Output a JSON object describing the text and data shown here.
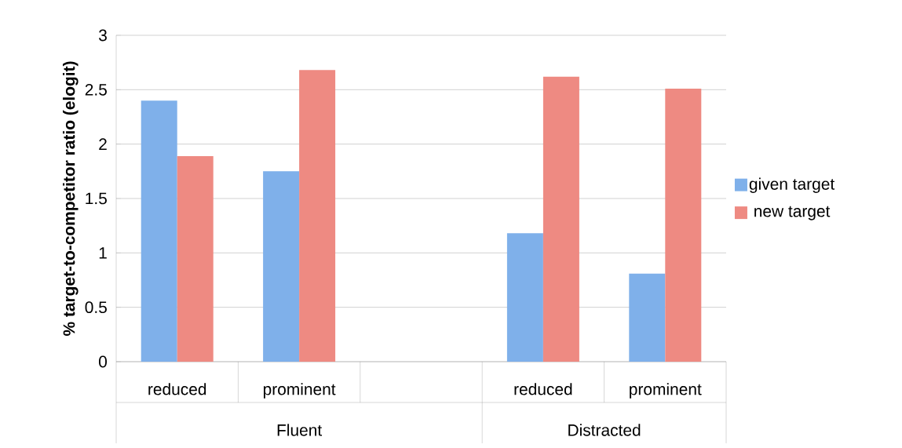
{
  "chart_data": {
    "type": "bar",
    "ylabel": "% target-to-competitor ratio (elogit)",
    "categories": [
      "reduced",
      "prominent",
      null,
      "reduced",
      "prominent"
    ],
    "series": [
      {
        "name": "given target",
        "color": "#7fb0ea",
        "values": [
          2.4,
          1.75,
          null,
          1.18,
          0.81
        ]
      },
      {
        "name": "new target",
        "color": "#ee8a82",
        "values": [
          1.89,
          2.68,
          null,
          2.62,
          2.51
        ]
      }
    ],
    "annotations": [
      "Fluent",
      "Distracted"
    ],
    "ylim": [
      0,
      3
    ],
    "yticks": [
      0,
      0.5,
      1,
      1.5,
      2,
      2.5,
      3
    ],
    "grid": "y",
    "legend": "right"
  }
}
